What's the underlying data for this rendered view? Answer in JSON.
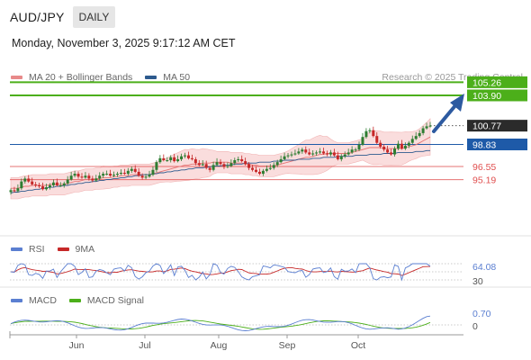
{
  "header": {
    "pair": "AUD/JPY",
    "timeframe": "DAILY"
  },
  "datetime": "Monday, November 3, 2025 9:17:12 AM CET",
  "credit": "Research © 2025 Trading Central",
  "colors": {
    "bull": "#2e7d32",
    "bear": "#c62828",
    "bands": "#f8d2d2",
    "ma20": "#e57373",
    "ma50": "#2d5a8e",
    "target": "#4caf1a",
    "pivot": "#1e5aa8",
    "support": "#e05050",
    "rsi": "#5b7fd1",
    "rsi_ma": "#c62828",
    "macd": "#5b7fd1",
    "signal": "#4caf1a"
  },
  "legend_main": [
    {
      "label": "MA 20 + Bollinger Bands",
      "color": "#e88a8a"
    },
    {
      "label": "MA 50",
      "color": "#2d5a8e"
    }
  ],
  "legend_rsi": [
    {
      "label": "RSI",
      "color": "#5b7fd1"
    },
    {
      "label": "9MA",
      "color": "#c62828"
    }
  ],
  "legend_macd": [
    {
      "label": "MACD",
      "color": "#5b7fd1"
    },
    {
      "label": "MACD Signal",
      "color": "#4caf1a"
    }
  ],
  "chart_data": {
    "type": "candlestick",
    "timeframe": "daily",
    "x_labels": [
      "Jun",
      "Jul",
      "Aug",
      "Sep",
      "Oct"
    ],
    "y_range": [
      92.0,
      107.0
    ],
    "price_levels": [
      {
        "label": "105.26",
        "value": 105.26,
        "kind": "target"
      },
      {
        "label": "103.90",
        "value": 103.9,
        "kind": "target"
      },
      {
        "label": "100.77",
        "value": 100.77,
        "kind": "last"
      },
      {
        "label": "98.83",
        "value": 98.83,
        "kind": "pivot"
      },
      {
        "label": "96.55",
        "value": 96.55,
        "kind": "support"
      },
      {
        "label": "95.19",
        "value": 95.19,
        "kind": "support"
      }
    ],
    "close_series": [
      94.1,
      94.0,
      94.3,
      95.0,
      95.3,
      95.0,
      94.7,
      94.6,
      94.5,
      94.2,
      94.4,
      94.6,
      94.9,
      94.6,
      94.6,
      94.8,
      95.2,
      95.6,
      95.8,
      95.5,
      95.4,
      95.6,
      95.3,
      95.1,
      95.3,
      95.6,
      95.8,
      95.8,
      95.6,
      95.7,
      95.8,
      95.9,
      95.8,
      96.1,
      96.3,
      96.0,
      95.6,
      95.4,
      95.5,
      95.7,
      96.2,
      97.0,
      97.4,
      97.2,
      97.2,
      97.5,
      97.1,
      97.3,
      97.6,
      97.7,
      97.4,
      97.3,
      96.9,
      96.7,
      96.8,
      96.4,
      96.2,
      96.7,
      97.0,
      96.8,
      96.5,
      96.6,
      96.9,
      97.2,
      97.3,
      97.1,
      96.8,
      96.4,
      96.2,
      96.0,
      95.8,
      96.1,
      96.3,
      96.4,
      96.7,
      97.0,
      97.3,
      97.6,
      97.7,
      97.8,
      97.9,
      98.1,
      98.3,
      98.0,
      97.8,
      97.9,
      98.0,
      98.1,
      97.9,
      97.8,
      98.0,
      97.7,
      97.3,
      97.6,
      97.8,
      98.0,
      98.3,
      98.3,
      98.8,
      99.6,
      100.2,
      100.3,
      99.7,
      99.0,
      98.6,
      98.3,
      98.0,
      97.8,
      98.4,
      98.9,
      98.4,
      98.7,
      99.0,
      99.4,
      99.7,
      100.0,
      100.5,
      100.7,
      100.77
    ],
    "ma20": [
      94.3,
      94.3,
      94.3,
      94.4,
      94.5,
      94.5,
      94.6,
      94.6,
      94.6,
      94.6,
      94.6,
      94.7,
      94.7,
      94.7,
      94.7,
      94.7,
      94.8,
      94.9,
      95.0,
      95.0,
      95.1,
      95.2,
      95.2,
      95.2,
      95.3,
      95.3,
      95.4,
      95.4,
      95.4,
      95.5,
      95.5,
      95.6,
      95.6,
      95.6,
      95.7,
      95.7,
      95.7,
      95.7,
      95.7,
      95.7,
      95.8,
      95.9,
      96.0,
      96.1,
      96.2,
      96.3,
      96.4,
      96.5,
      96.6,
      96.7,
      96.7,
      96.8,
      96.8,
      96.8,
      96.9,
      96.9,
      96.9,
      97.0,
      97.0,
      97.0,
      97.0,
      97.0,
      96.9,
      96.9,
      96.9,
      96.9,
      96.8,
      96.8,
      96.7,
      96.7,
      96.6,
      96.6,
      96.6,
      96.6,
      96.6,
      96.7,
      96.8,
      96.9,
      97.0,
      97.1,
      97.2,
      97.3,
      97.4,
      97.5,
      97.5,
      97.6,
      97.7,
      97.8,
      97.8,
      97.9,
      97.9,
      97.9,
      97.9,
      97.9,
      97.9,
      97.9,
      98.0,
      98.1,
      98.2,
      98.3,
      98.4,
      98.5,
      98.5,
      98.5,
      98.5,
      98.4,
      98.4,
      98.4,
      98.4,
      98.4,
      98.4,
      98.5,
      98.6,
      98.7,
      98.8,
      99.0,
      99.2,
      99.4,
      99.6
    ],
    "ma50": [
      93.8,
      93.9,
      93.9,
      94.0,
      94.0,
      94.1,
      94.1,
      94.2,
      94.2,
      94.3,
      94.3,
      94.4,
      94.4,
      94.5,
      94.5,
      94.6,
      94.6,
      94.7,
      94.7,
      94.8,
      94.8,
      94.9,
      94.9,
      95.0,
      95.0,
      95.1,
      95.1,
      95.2,
      95.2,
      95.3,
      95.3,
      95.4,
      95.4,
      95.5,
      95.5,
      95.6,
      95.6,
      95.7,
      95.7,
      95.7,
      95.8,
      95.8,
      95.9,
      95.9,
      96.0,
      96.0,
      96.1,
      96.1,
      96.2,
      96.2,
      96.3,
      96.3,
      96.4,
      96.4,
      96.4,
      96.5,
      96.5,
      96.6,
      96.6,
      96.6,
      96.7,
      96.7,
      96.7,
      96.8,
      96.8,
      96.8,
      96.9,
      96.9,
      96.9,
      96.9,
      97.0,
      97.0,
      97.0,
      97.0,
      97.1,
      97.1,
      97.1,
      97.2,
      97.2,
      97.2,
      97.2,
      97.3,
      97.3,
      97.3,
      97.3,
      97.4,
      97.4,
      97.4,
      97.5,
      97.5,
      97.5,
      97.5,
      97.6,
      97.6,
      97.6,
      97.6,
      97.6,
      97.7,
      97.7,
      97.7,
      97.7,
      97.8,
      97.8,
      97.8,
      97.8,
      97.9,
      97.9,
      97.9,
      97.9,
      98.0,
      98.0,
      98.0,
      98.0,
      98.0,
      98.1,
      98.1,
      98.1,
      98.2,
      98.2
    ],
    "rsi": {
      "label": "RSI",
      "value_label": "64.08",
      "value": 64.08,
      "level_label": "30",
      "levels": [
        70,
        50,
        30
      ],
      "range": [
        30,
        70
      ]
    },
    "macd": {
      "label": "MACD",
      "value_label": "0.70",
      "value": 0.7,
      "zero_label": "0",
      "range": [
        -0.6,
        1.0
      ]
    }
  }
}
